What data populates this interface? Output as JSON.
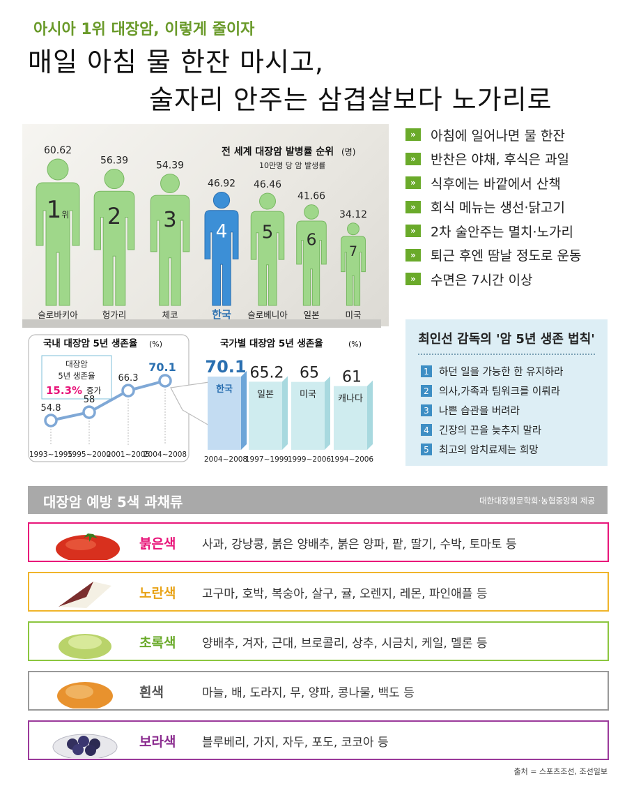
{
  "header": {
    "kicker": "아시아 1위 대장암, 이렇게 줄이자",
    "headline_line1": "매일 아침 물 한잔 마시고,",
    "headline_line2": "술자리 안주는 삼겹살보다 노가리로"
  },
  "colors": {
    "green": "#8ccd6e",
    "blue_highlight": "#3c8fd6",
    "bar_teal": "#c6e7ea",
    "bar_blue": "#b9d6ef",
    "magenta": "#e8157a",
    "orange": "#e8a317",
    "leaf_green": "#7ab42a",
    "purple": "#8b2c8f",
    "gray": "#999999"
  },
  "chart_data": [
    {
      "type": "bar",
      "title": "전 세계 대장암 발병률 순위",
      "title_unit": "(명)",
      "subtitle": "10만명 당 암 발생률",
      "categories": [
        "슬로바키아",
        "헝가리",
        "체코",
        "한국",
        "슬로베니아",
        "일본",
        "미국"
      ],
      "values": [
        60.62,
        56.39,
        54.39,
        46.92,
        46.46,
        41.66,
        34.12
      ],
      "value_labels": [
        "60.62",
        "56.39",
        "54.39",
        "46.92",
        "46.46",
        "41.66",
        "34.12"
      ],
      "ranks": [
        "1",
        "2",
        "3",
        "4",
        "5",
        "6",
        "7"
      ],
      "rank_suffix": "위",
      "highlight": "한국"
    },
    {
      "type": "line",
      "title": "국내 대장암 5년 생존율",
      "title_unit": "(%)",
      "categories": [
        "1993~1995",
        "1995~2000",
        "2001~2005",
        "2004~2008"
      ],
      "values": [
        54.8,
        58,
        66.3,
        70.1
      ],
      "value_labels": [
        "54.8",
        "58",
        "66.3",
        "70.1"
      ],
      "annotation": {
        "line1": "대장암",
        "line2": "5년 생존율",
        "value": "15.3%",
        "suffix": "증가"
      }
    },
    {
      "type": "bar",
      "title": "국가별 대장암 5년 생존율",
      "title_unit": "(%)",
      "categories": [
        "한국",
        "일본",
        "미국",
        "캐나다"
      ],
      "values": [
        70.1,
        65.2,
        65,
        61
      ],
      "value_labels": [
        "70.1",
        "65.2",
        "65",
        "61"
      ],
      "periods": [
        "2004~2008",
        "1997~1999",
        "1999~2006",
        "1994~2006"
      ],
      "highlight": "한국"
    }
  ],
  "tips": [
    "아침에 일어나면 물 한잔",
    "반찬은 야채, 후식은 과일",
    "식후에는 바깥에서 산책",
    "회식 메뉴는 생선·닭고기",
    "2차 술안주는 멸치·노가리",
    "퇴근 후엔 땀날 정도로 운동",
    "수면은 7시간 이상"
  ],
  "rules": {
    "title": "최인선 감독의 '암 5년 생존 법칙'",
    "items": [
      {
        "num": "1",
        "text": "하던 일을 가능한 한 유지하라"
      },
      {
        "num": "2",
        "text": "의사,가족과 팀워크를 이뤄라"
      },
      {
        "num": "3",
        "text": "나쁜 습관을 버려라"
      },
      {
        "num": "4",
        "text": "긴장의 끈을 늦추지 말라"
      },
      {
        "num": "5",
        "text": "최고의 암치료제는 희망"
      }
    ]
  },
  "veg": {
    "title": "대장암 예방 5색 과채류",
    "credit": "대한대장항문학회·농협중앙회 제공",
    "rows": [
      {
        "color_name": "붉은색",
        "items": "사과, 강낭콩, 붉은 양배추, 붉은 양파, 팥, 딸기, 수박, 토마토 등",
        "accent": "#e8157a",
        "label_color": "#e8157a"
      },
      {
        "color_name": "노란색",
        "items": "고구마, 호박, 복숭아, 살구, 귤, 오렌지, 레몬, 파인애플 등",
        "accent": "#f0b42a",
        "label_color": "#e8a317"
      },
      {
        "color_name": "초록색",
        "items": "양배추, 겨자, 근대, 브로콜리, 상추, 시금치, 케일, 멜론 등",
        "accent": "#8cc63f",
        "label_color": "#6aaa2a"
      },
      {
        "color_name": "흰색",
        "items": "마늘, 배, 도라지, 무, 양파, 콩나물, 백도 등",
        "accent": "#999999",
        "label_color": "#555555"
      },
      {
        "color_name": "보라색",
        "items": "블루베리, 가지, 자두, 포도, 코코아 등",
        "accent": "#9b3a9b",
        "label_color": "#8b2c8f"
      }
    ]
  },
  "source": "출처 = 스포츠조선, 조선일보"
}
